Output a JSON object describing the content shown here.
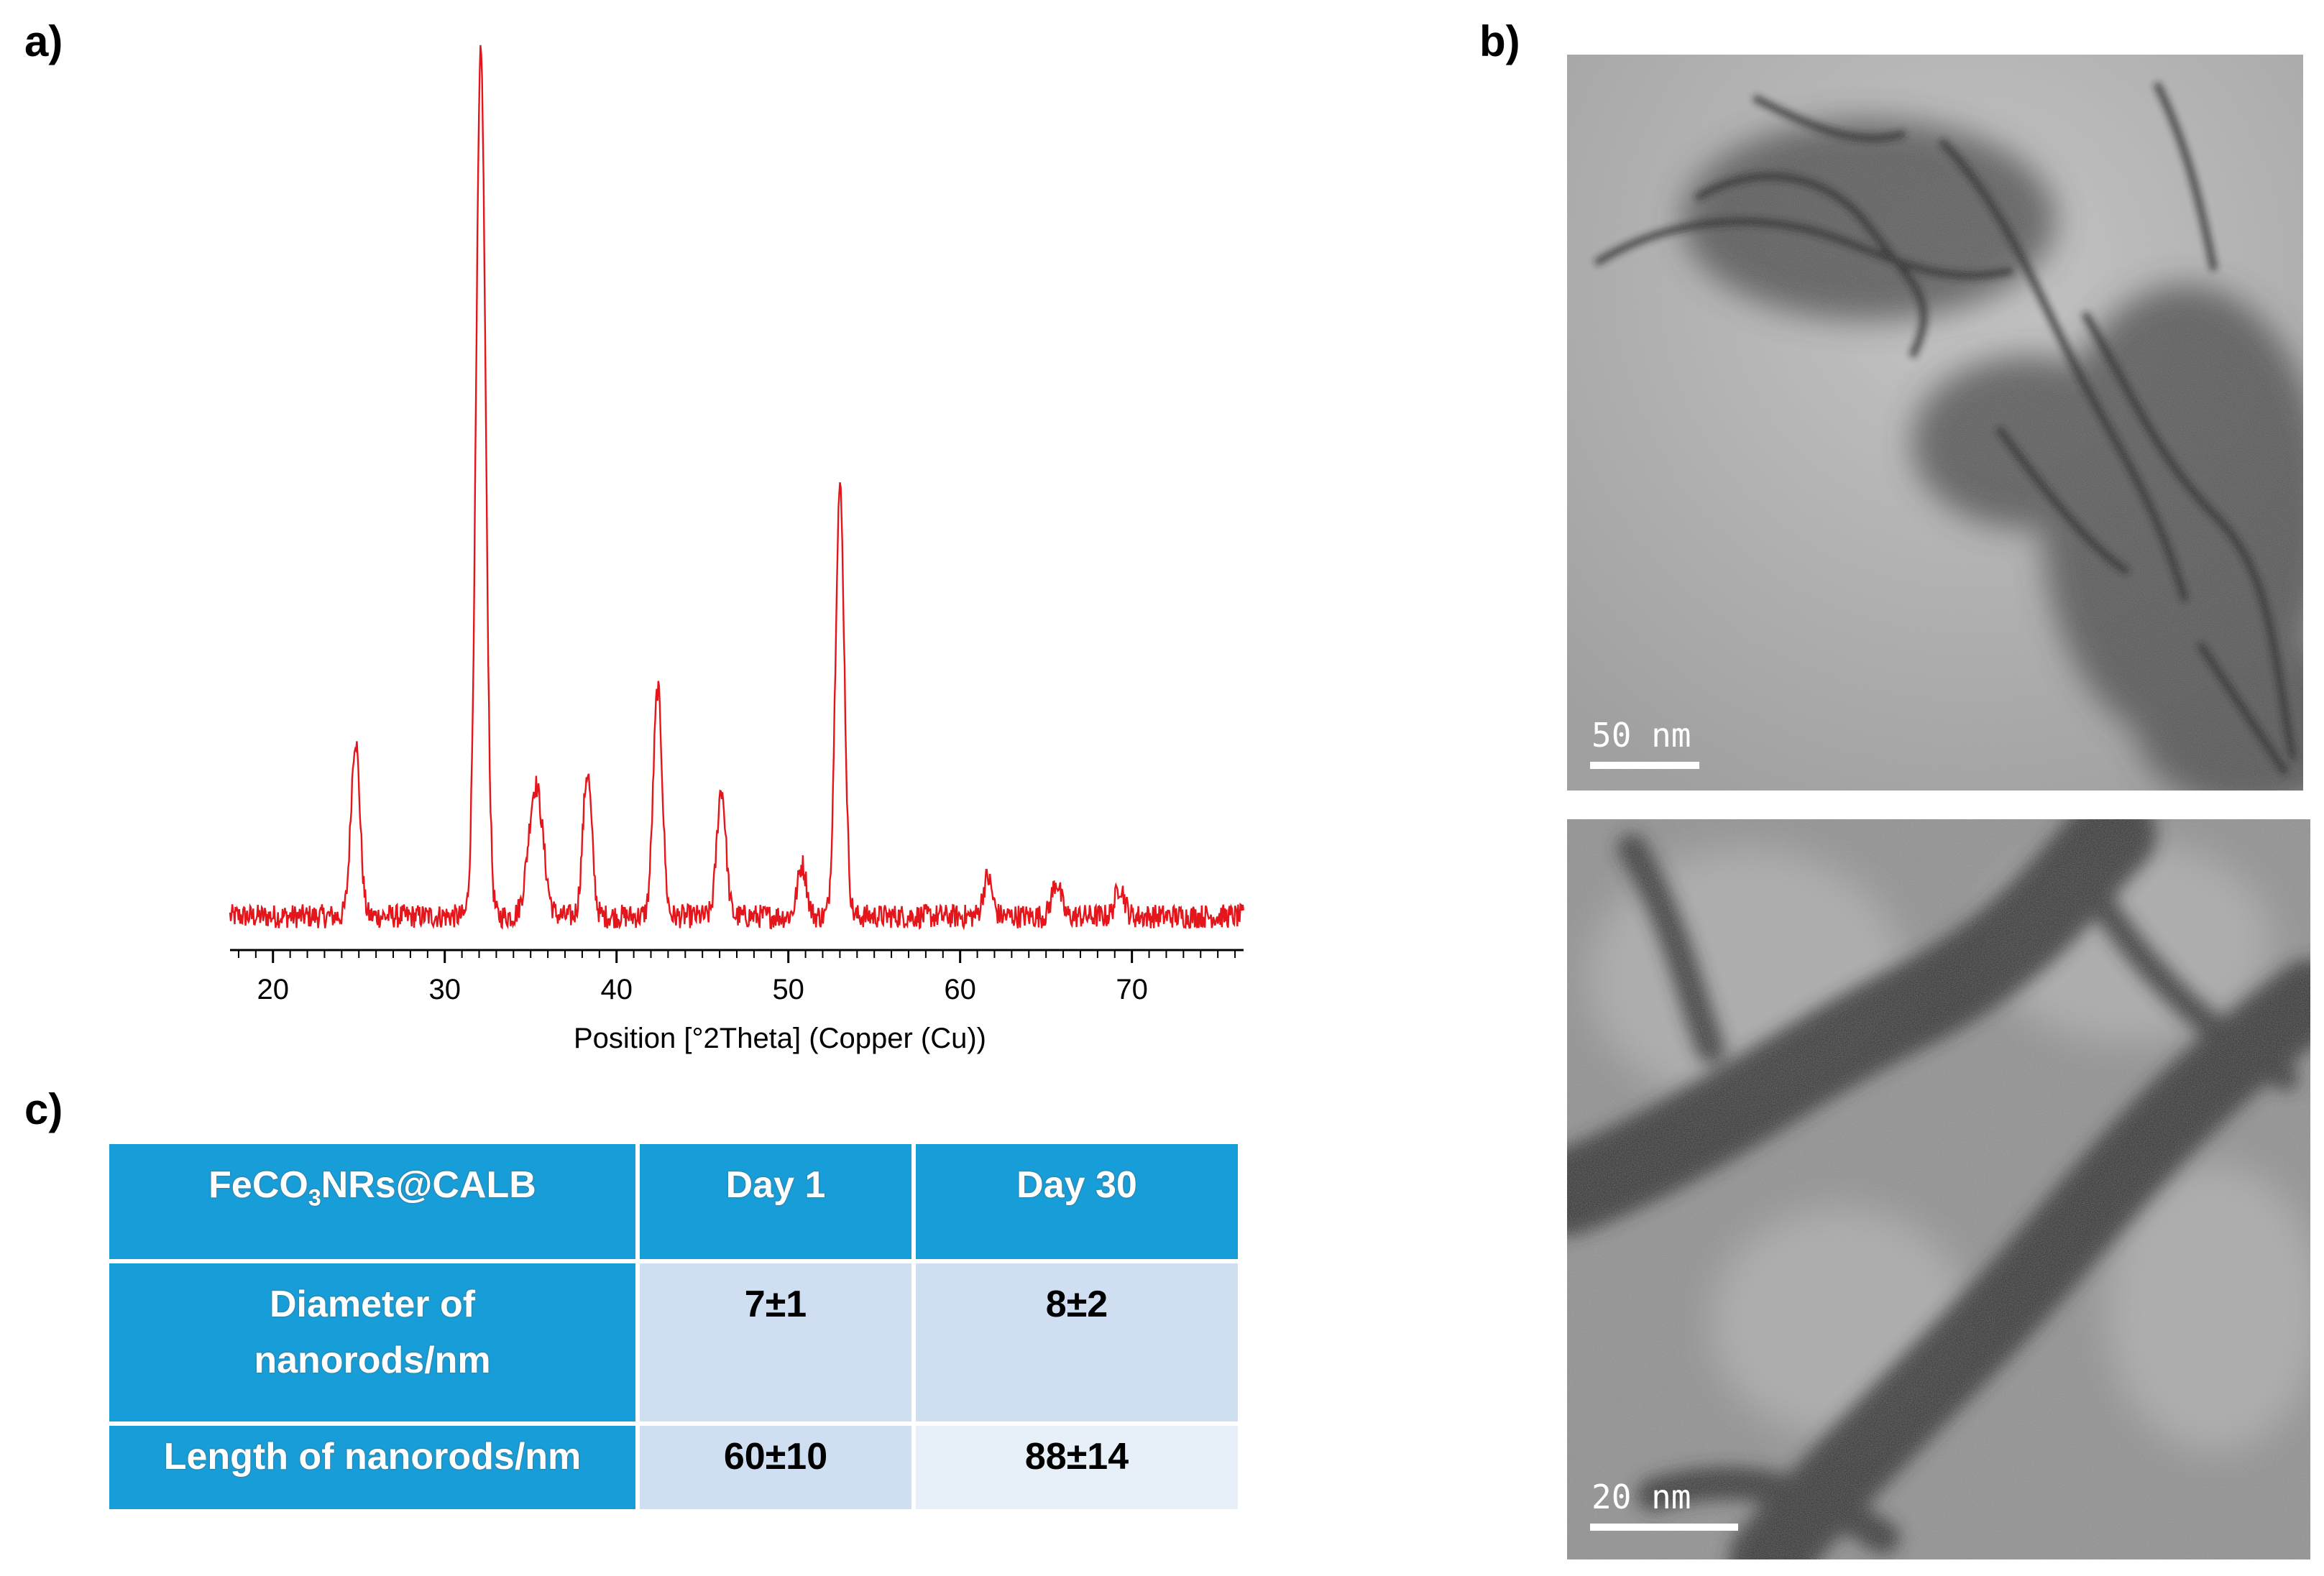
{
  "panel_labels": {
    "a": "a)",
    "b": "b)",
    "c": "c)"
  },
  "chart_data": {
    "type": "line",
    "xlabel": "Position [°2Theta] (Copper (Cu))",
    "ylabel": "",
    "xlim": [
      17.5,
      76.5
    ],
    "x_ticks": [
      20,
      30,
      40,
      50,
      60,
      70
    ],
    "grid": false,
    "legend": "none",
    "series_color": "#e4161b",
    "peaks": [
      {
        "x": 24.8,
        "height": 0.205
      },
      {
        "x": 32.1,
        "height": 1.0
      },
      {
        "x": 35.3,
        "height": 0.152
      },
      {
        "x": 38.3,
        "height": 0.167
      },
      {
        "x": 42.4,
        "height": 0.264
      },
      {
        "x": 46.1,
        "height": 0.148
      },
      {
        "x": 50.8,
        "height": 0.06
      },
      {
        "x": 53.0,
        "height": 0.497
      },
      {
        "x": 61.6,
        "height": 0.045
      },
      {
        "x": 65.6,
        "height": 0.04
      },
      {
        "x": 69.3,
        "height": 0.035
      }
    ]
  },
  "tem_images": {
    "top": {
      "scale_label": "50 nm"
    },
    "bottom": {
      "scale_label": "20 nm"
    }
  },
  "table": {
    "headers": [
      "FeCO3NRs@CALB",
      "Day 1",
      "Day 30"
    ],
    "header_first": {
      "prefix": "FeCO",
      "subscript": "3",
      "suffix": "NRs@CALB"
    },
    "rows": [
      {
        "label": "Diameter of nanorods/nm",
        "label_line1": "Diameter of",
        "label_line2": "nanorods/nm",
        "day1": "7±1",
        "day30": "8±2"
      },
      {
        "label": "Length of nanorods/nm",
        "day1": "60±10",
        "day30": "88±14"
      }
    ]
  }
}
